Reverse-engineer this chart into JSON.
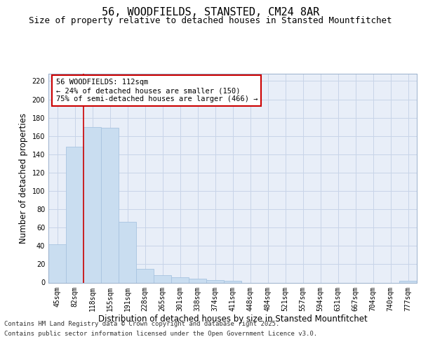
{
  "title": "56, WOODFIELDS, STANSTED, CM24 8AR",
  "subtitle": "Size of property relative to detached houses in Stansted Mountfitchet",
  "xlabel": "Distribution of detached houses by size in Stansted Mountfitchet",
  "ylabel": "Number of detached properties",
  "categories": [
    "45sqm",
    "82sqm",
    "118sqm",
    "155sqm",
    "191sqm",
    "228sqm",
    "265sqm",
    "301sqm",
    "338sqm",
    "374sqm",
    "411sqm",
    "448sqm",
    "484sqm",
    "521sqm",
    "557sqm",
    "594sqm",
    "631sqm",
    "667sqm",
    "704sqm",
    "740sqm",
    "777sqm"
  ],
  "values": [
    42,
    148,
    170,
    169,
    66,
    15,
    8,
    6,
    4,
    3,
    2,
    0,
    0,
    0,
    0,
    0,
    0,
    0,
    0,
    0,
    2
  ],
  "bar_color": "#c9ddf0",
  "bar_edge_color": "#a8c4e0",
  "vline_x": 1.5,
  "vline_color": "#cc0000",
  "annotation_text": "56 WOODFIELDS: 112sqm\n← 24% of detached houses are smaller (150)\n75% of semi-detached houses are larger (466) →",
  "annotation_box_color": "#cc0000",
  "ylim": [
    0,
    228
  ],
  "yticks": [
    0,
    20,
    40,
    60,
    80,
    100,
    120,
    140,
    160,
    180,
    200,
    220
  ],
  "grid_color": "#c8d4e8",
  "background_color": "#e8eef8",
  "footer_line1": "Contains HM Land Registry data © Crown copyright and database right 2025.",
  "footer_line2": "Contains public sector information licensed under the Open Government Licence v3.0.",
  "title_fontsize": 11,
  "subtitle_fontsize": 9,
  "axis_label_fontsize": 8.5,
  "tick_fontsize": 7,
  "annotation_fontsize": 7.5,
  "footer_fontsize": 6.5
}
